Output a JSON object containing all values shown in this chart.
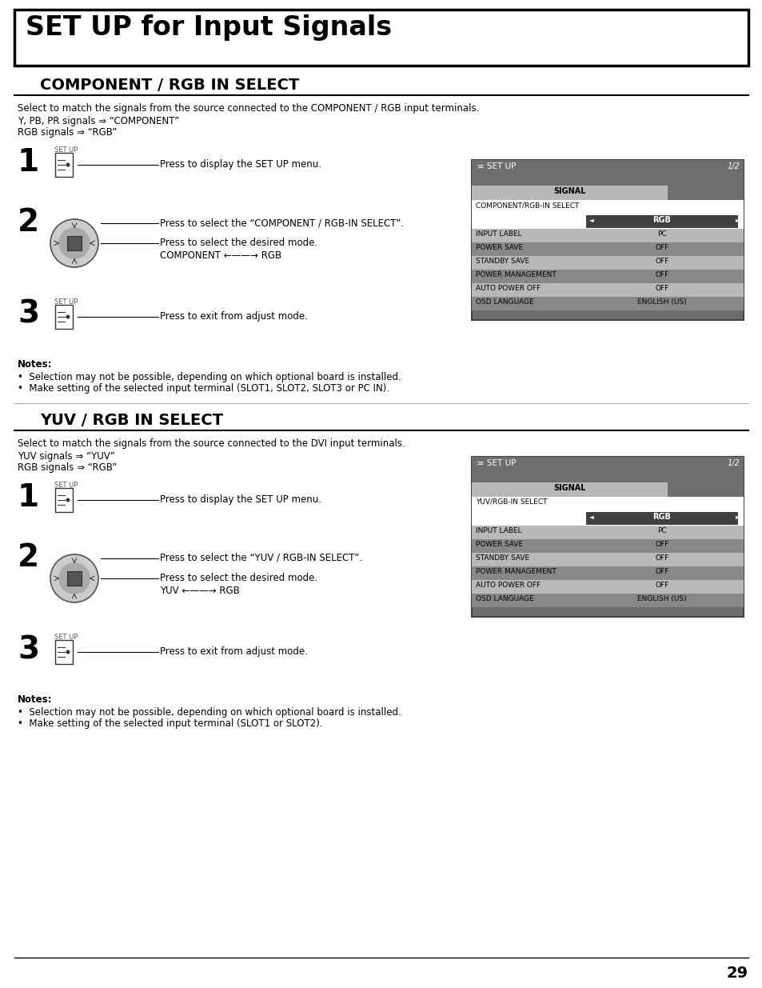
{
  "title": "SET UP for Input Signals",
  "section1_title": "COMPONENT / RGB IN SELECT",
  "section1_desc1": "Select to match the signals from the source connected to the COMPONENT / RGB input terminals.",
  "section1_desc2": "Y, PB, PR signals ⇒ “COMPONENT”",
  "section1_desc3": "RGB signals ⇒ “RGB”",
  "step1_text": "Press to display the SET UP menu.",
  "step2_text1": "Press to select the “COMPONENT / RGB-IN SELECT”.",
  "step2_text2": "Press to select the desired mode.",
  "step2_text3": "COMPONENT ←——→ RGB",
  "step3_text": "Press to exit from adjust mode.",
  "notes1_title": "Notes:",
  "notes1_bullet1": "•  Selection may not be possible, depending on which optional board is installed.",
  "notes1_bullet2": "•  Make setting of the selected input terminal (SLOT1, SLOT2, SLOT3 or PC IN).",
  "menu1_title": "SET UP",
  "menu1_page": "1/2",
  "menu1_signal_label": "SIGNAL",
  "menu1_row1_label": "COMPONENT/RGB-IN SELECT",
  "menu1_row1_value": "RGB",
  "menu1_rows": [
    [
      "INPUT LABEL",
      "PC"
    ],
    [
      "POWER SAVE",
      "OFF"
    ],
    [
      "STANDBY SAVE",
      "OFF"
    ],
    [
      "POWER MANAGEMENT",
      "OFF"
    ],
    [
      "AUTO POWER OFF",
      "OFF"
    ],
    [
      "OSD LANGUAGE",
      "ENGLISH (US)"
    ]
  ],
  "section2_title": "YUV / RGB IN SELECT",
  "section2_desc1": "Select to match the signals from the source connected to the DVI input terminals.",
  "section2_desc2": "YUV signals ⇒ “YUV”",
  "section2_desc3": "RGB signals ⇒ “RGB”",
  "step4_text": "Press to display the SET UP menu.",
  "step5_text1": "Press to select the “YUV / RGB-IN SELECT”.",
  "step5_text2": "Press to select the desired mode.",
  "step5_text3": "YUV ←——→ RGB",
  "step6_text": "Press to exit from adjust mode.",
  "notes2_title": "Notes:",
  "notes2_bullet1": "•  Selection may not be possible, depending on which optional board is installed.",
  "notes2_bullet2": "•  Make setting of the selected input terminal (SLOT1 or SLOT2).",
  "menu2_title": "SET UP",
  "menu2_page": "1/2",
  "menu2_signal_label": "SIGNAL",
  "menu2_row1_label": "YUV/RGB-IN SELECT",
  "menu2_row1_value": "RGB",
  "menu2_rows": [
    [
      "INPUT LABEL",
      "PC"
    ],
    [
      "POWER SAVE",
      "OFF"
    ],
    [
      "STANDBY SAVE",
      "OFF"
    ],
    [
      "POWER MANAGEMENT",
      "OFF"
    ],
    [
      "AUTO POWER OFF",
      "OFF"
    ],
    [
      "OSD LANGUAGE",
      "ENGLISH (US)"
    ]
  ],
  "page_number": "29",
  "setup_label": "SET UP",
  "bg_color": "#ffffff",
  "menu_header_color": "#6e6e6e",
  "menu_dark_row": "#888888",
  "menu_light_row": "#b8b8b8",
  "menu_white_row": "#ffffff",
  "menu_selected_color": "#404040",
  "menu_text_white": "#ffffff",
  "menu_text_black": "#000000",
  "menu_border": "#444444"
}
